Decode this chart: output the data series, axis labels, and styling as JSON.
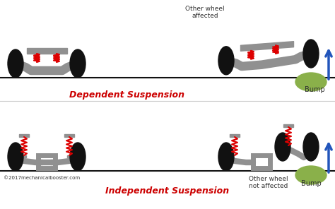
{
  "bg_color": "#ffffff",
  "title_dep": "Dependent Suspension",
  "title_indep": "Independent Suspension",
  "label_other_wheel_affected": "Other wheel\naffected",
  "label_other_wheel_not_affected": "Other wheel\nnot affected",
  "label_bump_top": "Bump",
  "label_bump_bot": "Bump",
  "label_copyright": "©2017mechanicalbooster.com",
  "wheel_color": "#111111",
  "axle_color": "#909090",
  "axle_dark": "#777777",
  "spring_color": "#dd0000",
  "bump_color": "#8ab04a",
  "arrow_color": "#2255bb",
  "ground_color": "#111111",
  "title_color": "#cc0000",
  "text_color": "#333333",
  "sep_color": "#cccccc"
}
